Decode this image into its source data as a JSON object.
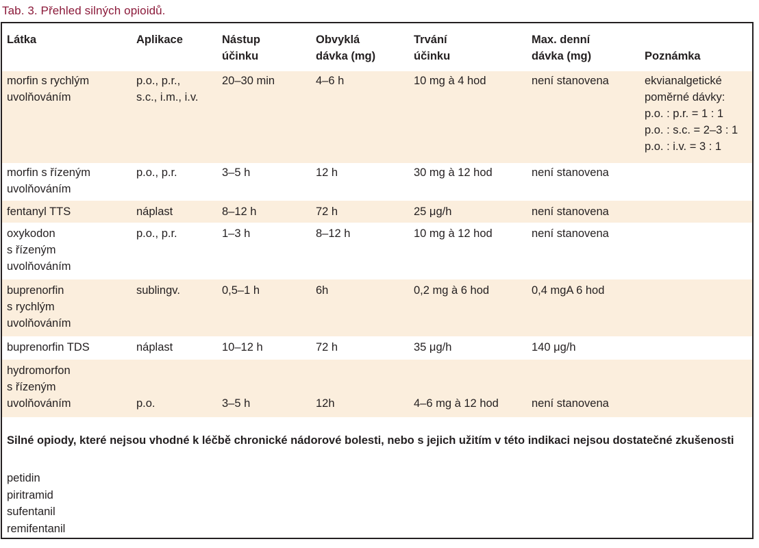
{
  "caption": "Tab. 3. Přehled silných opioidů.",
  "colors": {
    "caption": "#8b1a3a",
    "row_shade": "#fbeedd",
    "border": "#231f20"
  },
  "table": {
    "headers": [
      "Látka",
      "Aplikace",
      "Nástup\núčinku",
      "Obvyklá\ndávka (mg)",
      "Trvání\núčinku",
      "Max. denní\ndávka (mg)",
      "Poznámka"
    ],
    "rows": [
      {
        "cells": [
          "morfin s rychlým\nuvolňováním",
          "p.o., p.r.,\ns.c., i.m., i.v.",
          "20–30 min",
          "4–6 h",
          "10 mg à 4 hod",
          "není stanovena",
          "ekvianalgetické\npoměrné dávky:\np.o. : p.r. = 1 : 1\np.o. : s.c. = 2–3 : 1\np.o. : i.v. = 3 : 1"
        ]
      },
      {
        "cells": [
          "morfin s řízeným\nuvolňováním",
          "p.o., p.r.",
          "3–5 h",
          "12 h",
          "30 mg à 12 hod",
          "není stanovena",
          ""
        ]
      },
      {
        "cells": [
          "fentanyl TTS",
          "náplast",
          "8–12 h",
          "72 h",
          "25 μg/h",
          "není stanovena",
          ""
        ]
      },
      {
        "cells": [
          "oxykodon\ns řízeným\nuvolňováním",
          "p.o., p.r.",
          "1–3 h",
          "8–12 h",
          "10 mg à 12 hod",
          "není stanovena",
          ""
        ]
      },
      {
        "cells": [
          "buprenorfin\ns rychlým\nuvolňováním",
          "sublingv.",
          "0,5–1 h",
          "6h",
          "0,2 mg à 6 hod",
          "0,4 mgA 6 hod",
          ""
        ]
      },
      {
        "cells": [
          "buprenorfin TDS",
          "náplast",
          "10–12 h",
          "72 h",
          "35 μg/h",
          "140 μg/h",
          ""
        ]
      },
      {
        "cells": [
          "hydromorfon\ns řízeným\nuvolňováním",
          "\n\np.o.",
          "\n\n3–5 h",
          "\n\n12h",
          "\n\n4–6 mg à 12 hod",
          "\n\nnení stanovena",
          ""
        ]
      }
    ]
  },
  "other_section": {
    "title": "Silné opiody, které nejsou vhodné k léčbě chronické nádorové bolesti, nebo s jejich užitím v této indikaci nejsou dostatečné zkušenosti",
    "items": [
      "petidin",
      "piritramid",
      "sufentanil",
      "remifentanil"
    ]
  }
}
